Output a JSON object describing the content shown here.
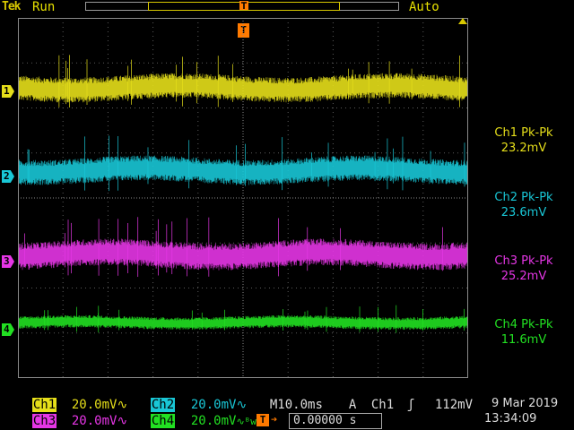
{
  "header": {
    "brand": "Tek",
    "acq_state": "Run",
    "trigger_mode": "Auto"
  },
  "colors": {
    "ch1": "#e6df1a",
    "ch2": "#19c7d6",
    "ch3": "#e636e6",
    "ch4": "#22e022",
    "trigger": "#ff7a00"
  },
  "channels": [
    {
      "id": "1",
      "marker": "1",
      "pkpk_label": "Ch1 Pk-Pk",
      "pkpk_value": "23.2mV",
      "scale_label": "Ch1",
      "scale": "20.0mV",
      "coupling": "∿"
    },
    {
      "id": "2",
      "marker": "2",
      "pkpk_label": "Ch2 Pk-Pk",
      "pkpk_value": "23.6mV",
      "scale_label": "Ch2",
      "scale": "20.0mV",
      "coupling": "∿"
    },
    {
      "id": "3",
      "marker": "3",
      "pkpk_label": "Ch3 Pk-Pk",
      "pkpk_value": "25.2mV",
      "scale_label": "Ch3",
      "scale": "20.0mV",
      "coupling": "∿"
    },
    {
      "id": "4",
      "marker": "4",
      "pkpk_label": "Ch4 Pk-Pk",
      "pkpk_value": "11.6mV",
      "scale_label": "Ch4",
      "scale": "20.0mV",
      "coupling": "∿ᴮw"
    }
  ],
  "timebase": {
    "label": "M",
    "scale": "10.0ms",
    "trigger_type": "A",
    "trigger_source": "Ch1",
    "trigger_slope": "ʃ",
    "trigger_level": "112mV"
  },
  "trigger_position": {
    "marker": "T",
    "value": "0.00000 s"
  },
  "timestamp": {
    "date": "9 Mar  2019",
    "time": "13:34:09"
  }
}
